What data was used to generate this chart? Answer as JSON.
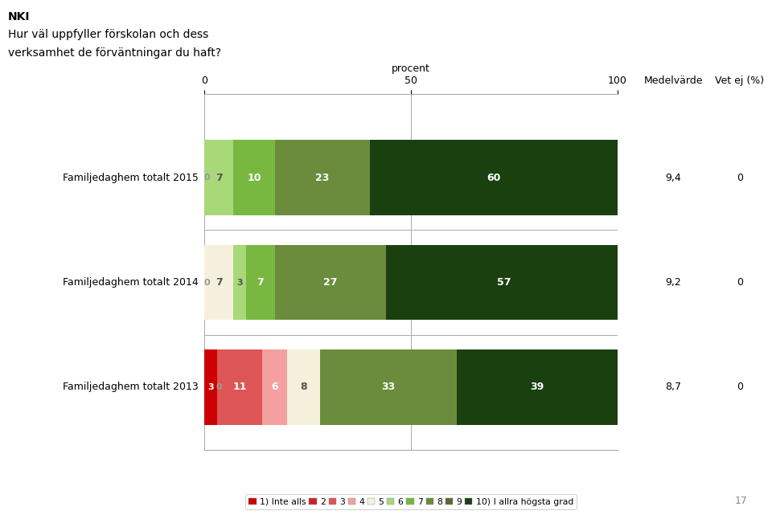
{
  "title_line1": "NKI",
  "title_line2": "Hur väl uppfyller förskolan och dess",
  "title_line3": "verksamhet de förväntningar du haft?",
  "rows": [
    {
      "label": "Familjedaghem totalt 2015",
      "segments": [
        0,
        0,
        0,
        0,
        0,
        7,
        10,
        23,
        0,
        60
      ],
      "zero_label": true,
      "medelvarde": "9,4",
      "vetej": "0"
    },
    {
      "label": "Familjedaghem totalt 2014",
      "segments": [
        0,
        0,
        0,
        0,
        7,
        3,
        7,
        27,
        0,
        57
      ],
      "zero_label": true,
      "medelvarde": "9,2",
      "vetej": "0"
    },
    {
      "label": "Familjedaghem totalt 2013",
      "segments": [
        3,
        0,
        11,
        6,
        8,
        0,
        0,
        33,
        0,
        39
      ],
      "zero_label": false,
      "medelvarde": "8,7",
      "vetej": "0"
    }
  ],
  "colors": [
    "#cc0000",
    "#cc2222",
    "#dd5555",
    "#f4a0a0",
    "#f5f0dc",
    "#a8d878",
    "#78b840",
    "#6b8c3c",
    "#556b2f",
    "#1a4010"
  ],
  "legend_labels": [
    "1) Inte alls",
    "2",
    "3",
    "4",
    "5",
    "6",
    "7",
    "8",
    "9",
    "10) I allra högsta grad"
  ],
  "col_header_medelvarde": "Medelvärde",
  "col_header_vetej": "Vet ej (%)",
  "bg_color": "#ffffff",
  "xlim": [
    0,
    100
  ],
  "xticks": [
    0,
    50,
    100
  ],
  "page_num": "17",
  "procent_label": "procent"
}
